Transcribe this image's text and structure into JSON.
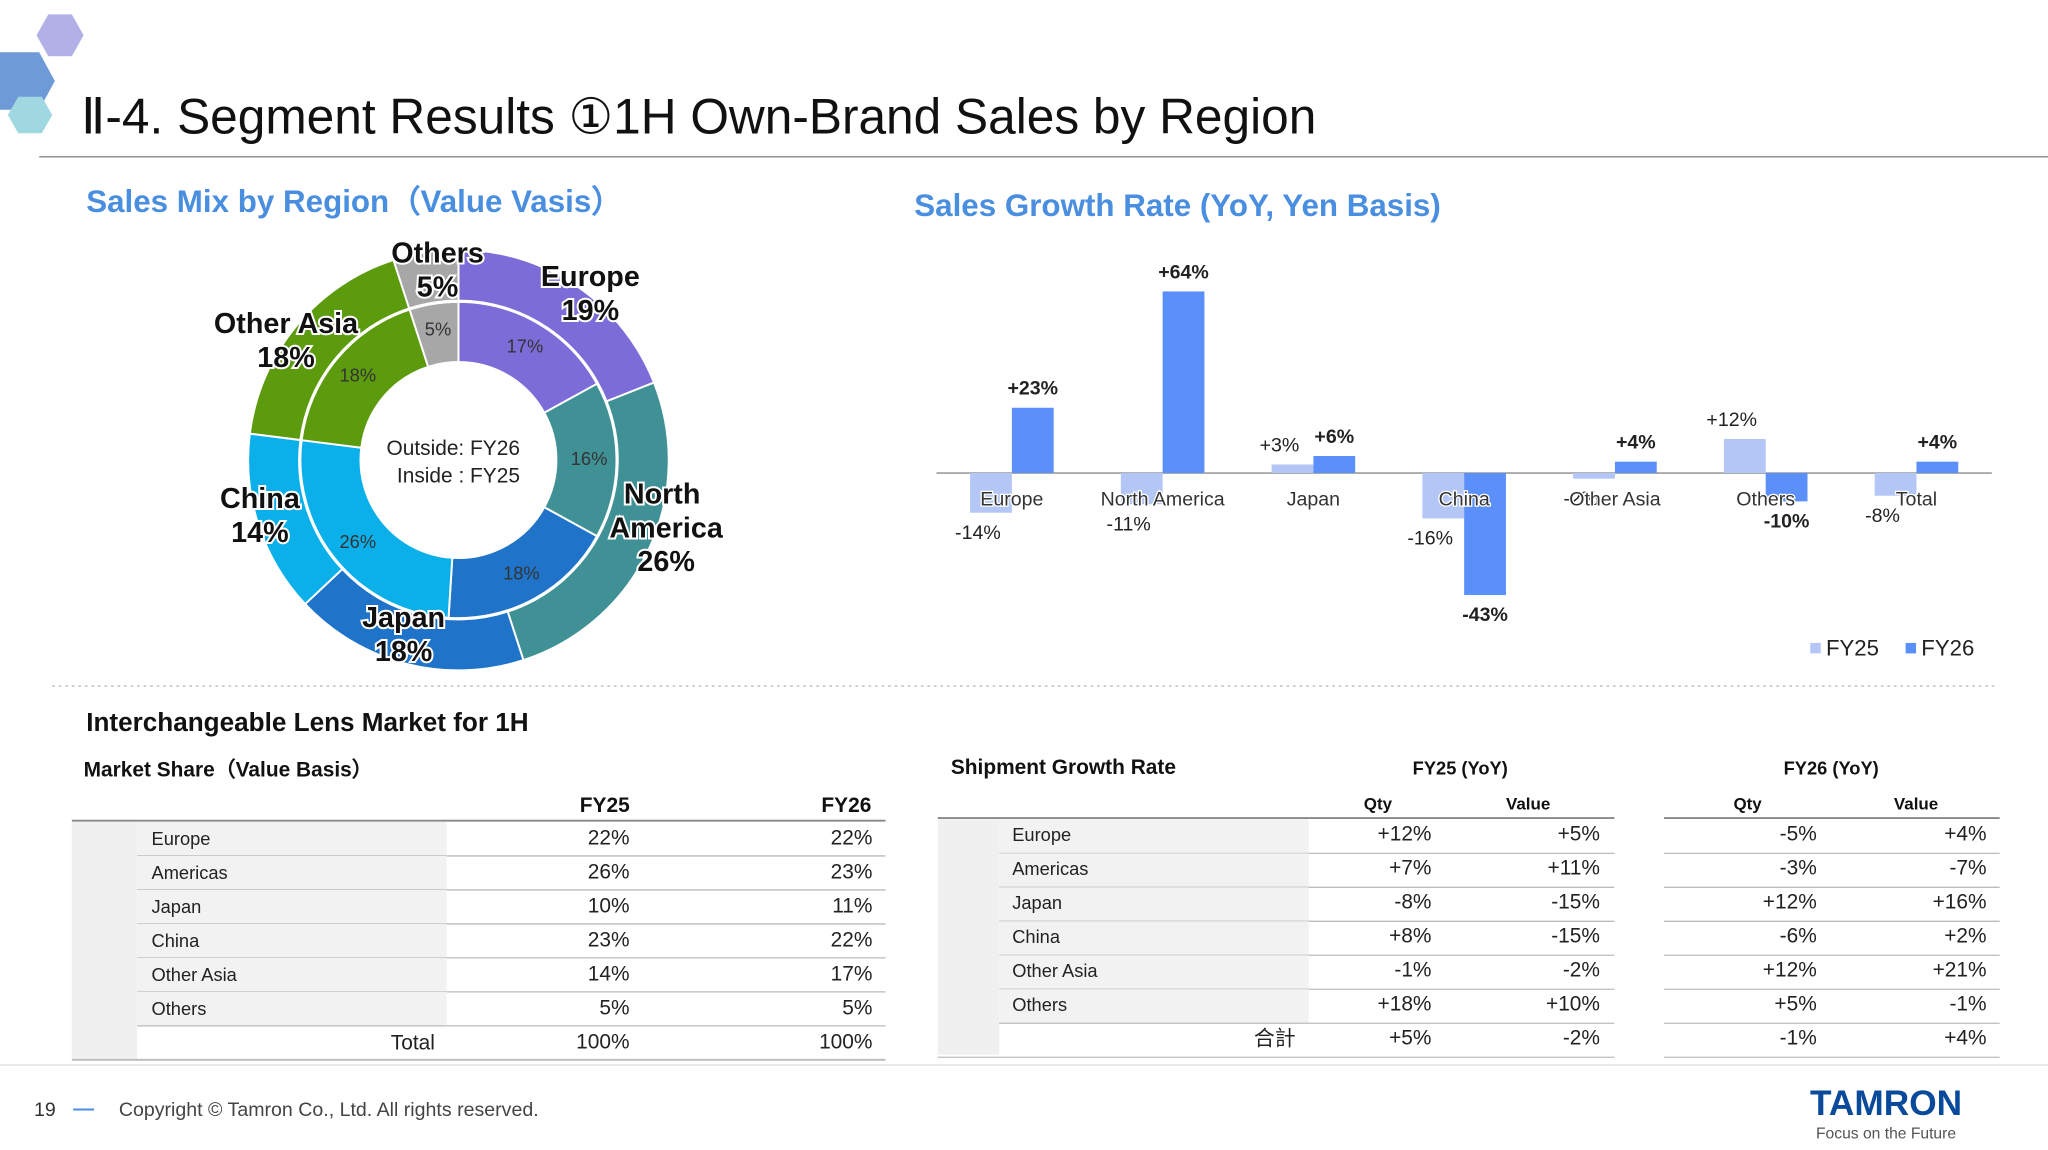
{
  "title": "Ⅱ-4. Segment Results ①1H Own-Brand Sales by Region",
  "chart_data": [
    {
      "type": "donut",
      "title": "Sales Mix by Region（Value Vasis）",
      "categories": [
        "Europe",
        "North America",
        "Japan",
        "China",
        "Other Asia",
        "Others"
      ],
      "colors": [
        "#7b6cd8",
        "#3f9196",
        "#1f74c9",
        "#0bb0ea",
        "#5c9b0d",
        "#a7a7a7"
      ],
      "annotations": [
        "Outside: FY26",
        "Inside : FY25"
      ],
      "series": [
        {
          "ring": "outer",
          "values": [
            19,
            26,
            18,
            14,
            18,
            5
          ],
          "value_labels": [
            "19%",
            "26%",
            "18%",
            "14%",
            "18%",
            "5%"
          ]
        },
        {
          "ring": "inner",
          "values": [
            17,
            16,
            18,
            26,
            18,
            5
          ],
          "value_labels": [
            "17%",
            "16%",
            "18%",
            "26%",
            "18%",
            "5%"
          ]
        }
      ]
    },
    {
      "type": "bar",
      "title": "Sales Growth Rate (YoY, Yen Basis)",
      "categories": [
        "Europe",
        "North America",
        "Japan",
        "China",
        "Other Asia",
        "Others",
        "Total"
      ],
      "ylim": [
        -50,
        70
      ],
      "legend": "bottom-right",
      "series": [
        {
          "name": "FY25",
          "color": "#b3c6f5",
          "values": [
            -14,
            -11,
            3,
            -16,
            -2,
            12,
            -8
          ],
          "value_labels": [
            "-14%",
            "-11%",
            "+3%",
            "-16%",
            "-2%",
            "+12%",
            "-8%"
          ]
        },
        {
          "name": "FY26",
          "color": "#5b8ff9",
          "values": [
            23,
            64,
            6,
            -43,
            4,
            -10,
            4
          ],
          "value_labels": [
            "+23%",
            "+64%",
            "+6%",
            "-43%",
            "+4%",
            "-10%",
            "+4%"
          ]
        }
      ]
    }
  ],
  "market": {
    "heading": "Interchangeable Lens Market for 1H",
    "subtitle": "Market Share（Value Basis）",
    "columns": [
      "FY25",
      "FY26"
    ],
    "rows": [
      [
        "Europe",
        "22%",
        "22%"
      ],
      [
        "Americas",
        "26%",
        "23%"
      ],
      [
        "Japan",
        "10%",
        "11%"
      ],
      [
        "China",
        "23%",
        "22%"
      ],
      [
        "Other Asia",
        "14%",
        "17%"
      ],
      [
        "Others",
        "5%",
        "5%"
      ],
      [
        "Total",
        "100%",
        "100%"
      ]
    ]
  },
  "shipment": {
    "title": "Shipment Growth Rate",
    "groups": [
      "FY25 (YoY)",
      "FY26 (YoY)"
    ],
    "subcolumns": [
      "Qty",
      "Value",
      "Qty",
      "Value"
    ],
    "rows": [
      [
        "Europe",
        "+12%",
        "+5%",
        "-5%",
        "+4%"
      ],
      [
        "Americas",
        "+7%",
        "+11%",
        "-3%",
        "-7%"
      ],
      [
        "Japan",
        "-8%",
        "-15%",
        "+12%",
        "+16%"
      ],
      [
        "China",
        "+8%",
        "-15%",
        "-6%",
        "+2%"
      ],
      [
        "Other Asia",
        "-1%",
        "-2%",
        "+12%",
        "+21%"
      ],
      [
        "Others",
        "+18%",
        "+10%",
        "+5%",
        "-1%"
      ],
      [
        "合計",
        "+5%",
        "-2%",
        "-1%",
        "+4%"
      ]
    ]
  },
  "footer": {
    "page": "19",
    "copyright": "Copyright © Tamron Co., Ltd. All rights reserved.",
    "brand": "TAMRON",
    "tagline": "Focus on the Future"
  }
}
